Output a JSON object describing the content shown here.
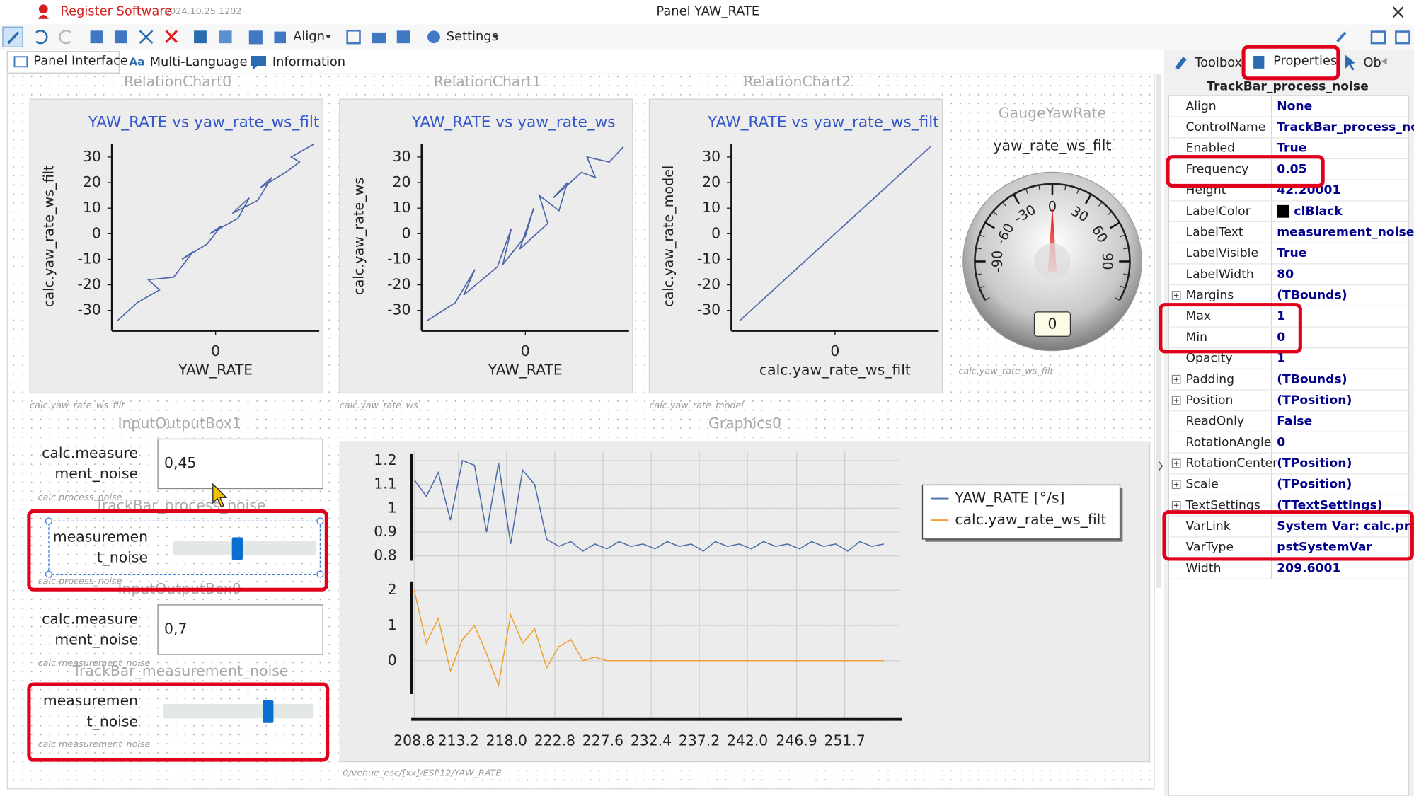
{
  "titlebar": {
    "app": "Register Software",
    "version": "2024.10.25.1202",
    "title": "Panel YAW_RATE"
  },
  "toolbar": {
    "align": "Align",
    "settings": "Settings"
  },
  "tabs": [
    "Panel Interface",
    "Multi-Language",
    "Information"
  ],
  "right_tabs": [
    "Toolbox",
    "Properties",
    "Ob"
  ],
  "properties": {
    "title": "TrackBar_process_noise",
    "rows": [
      {
        "name": "Align",
        "value": "None"
      },
      {
        "name": "ControlName",
        "value": "TrackBar_process_nois"
      },
      {
        "name": "Enabled",
        "value": "True"
      },
      {
        "name": "Frequency",
        "value": "0.05"
      },
      {
        "name": "Height",
        "value": "42.20001"
      },
      {
        "name": "LabelColor",
        "value": "clBlack",
        "swatch": "#000000"
      },
      {
        "name": "LabelText",
        "value": "measurement_noise"
      },
      {
        "name": "LabelVisible",
        "value": "True"
      },
      {
        "name": "LabelWidth",
        "value": "80"
      },
      {
        "name": "Margins",
        "value": "(TBounds)",
        "expand": true
      },
      {
        "name": "Max",
        "value": "1"
      },
      {
        "name": "Min",
        "value": "0"
      },
      {
        "name": "Opacity",
        "value": "1"
      },
      {
        "name": "Padding",
        "value": "(TBounds)",
        "expand": true
      },
      {
        "name": "Position",
        "value": "(TPosition)",
        "expand": true
      },
      {
        "name": "ReadOnly",
        "value": "False"
      },
      {
        "name": "RotationAngle",
        "value": "0"
      },
      {
        "name": "RotationCenter",
        "value": "(TPosition)",
        "expand": true
      },
      {
        "name": "Scale",
        "value": "(TPosition)",
        "expand": true
      },
      {
        "name": "TextSettings",
        "value": "(TTextSettings)",
        "expand": true
      },
      {
        "name": "VarLink",
        "value": "System Var: calc.proces"
      },
      {
        "name": "VarType",
        "value": "pstSystemVar"
      },
      {
        "name": "Width",
        "value": "209.6001"
      }
    ]
  },
  "relation_charts": [
    {
      "name": "RelationChart0",
      "title": "YAW_RATE vs yaw_rate_ws_filt",
      "xlabel": "YAW_RATE",
      "ylabel": "calc.yaw_rate_ws_filt",
      "var": "calc.yaw_rate_ws_filt",
      "xlim": [
        -37,
        37
      ],
      "ylim": [
        -38,
        35
      ],
      "xticks": [
        0
      ],
      "yticks": [
        30,
        20,
        10,
        0,
        -10,
        -20,
        -30
      ],
      "color": "#4a64a8",
      "x": [
        -35,
        -28,
        -20,
        -24,
        -15,
        -8,
        -12,
        -3,
        2,
        -2,
        8,
        12,
        6,
        15,
        20,
        16,
        25,
        30,
        27,
        35
      ],
      "y": [
        -34,
        -27,
        -22,
        -18,
        -17,
        -7,
        -10,
        -4,
        3,
        0,
        6,
        14,
        8,
        13,
        22,
        18,
        24,
        28,
        30,
        35
      ]
    },
    {
      "name": "RelationChart1",
      "title": "YAW_RATE vs yaw_rate_ws",
      "xlabel": "YAW_RATE",
      "ylabel": "calc.yaw_rate_ws",
      "var": "calc.yaw_rate_ws",
      "xlim": [
        -37,
        37
      ],
      "ylim": [
        -38,
        35
      ],
      "xticks": [
        0
      ],
      "yticks": [
        30,
        20,
        10,
        0,
        -10,
        -20,
        -30
      ],
      "color": "#4a64a8",
      "x": [
        -35,
        -25,
        -18,
        -22,
        -10,
        -5,
        -8,
        0,
        3,
        -2,
        8,
        5,
        12,
        15,
        10,
        20,
        25,
        22,
        30,
        35
      ],
      "y": [
        -34,
        -27,
        -14,
        -24,
        -13,
        2,
        -12,
        -1,
        10,
        -6,
        4,
        15,
        9,
        20,
        14,
        24,
        22,
        30,
        28,
        34
      ]
    },
    {
      "name": "RelationChart2",
      "title": "YAW_RATE vs yaw_rate_ws_filt",
      "xlabel": "calc.yaw_rate_ws_filt",
      "ylabel": "calc.yaw_rate_model",
      "var": "calc.yaw_rate_model",
      "xlim": [
        -37,
        37
      ],
      "ylim": [
        -38,
        35
      ],
      "xticks": [
        0
      ],
      "yticks": [
        30,
        20,
        10,
        0,
        -10,
        -20,
        -30
      ],
      "color": "#4a64a8",
      "x": [
        -34,
        34
      ],
      "y": [
        -34,
        34
      ]
    }
  ],
  "gauge": {
    "name": "GaugeYawRate",
    "label": "yaw_rate_ws_filt",
    "var": "calc.yaw_rate_ws_filt",
    "value": 0,
    "lim": [
      -120,
      120
    ],
    "ticks": [
      -90,
      -60,
      -30,
      0,
      30,
      60,
      90
    ]
  },
  "io_boxes": [
    {
      "name": "InputOutputBox1",
      "label_lines": [
        "calc.measure",
        "ment_noise"
      ],
      "value": "0,45",
      "var": "calc.process_noise"
    },
    {
      "name": "InputOutputBox0",
      "label_lines": [
        "calc.measure",
        "ment_noise"
      ],
      "value": "0,7",
      "var": "calc.measurement_noise"
    }
  ],
  "trackbars": [
    {
      "name": "TrackBar_process_noise",
      "label_lines": [
        "measuremen",
        "t_noise"
      ],
      "value": 0.45,
      "range": [
        0,
        1
      ],
      "var": "calc.process_noise"
    },
    {
      "name": "TrackBar_measurement_noise",
      "label_lines": [
        "measuremen",
        "t_noise"
      ],
      "value": 0.7,
      "range": [
        0,
        1
      ],
      "var": "calc.measurement_noise"
    }
  ],
  "graphics": {
    "name": "Graphics0",
    "var": "0/venue_esc/[xx]/ESP12/YAW_RATE",
    "grid": true,
    "xlim": [
      208.5,
      257.2
    ],
    "xticks": [
      208.8,
      213.2,
      {
        "value": 218,
        "label": "218.0"
      },
      222.8,
      227.6,
      232.4,
      237.2,
      {
        "value": 242,
        "label": "242.0"
      },
      246.9,
      251.7
    ],
    "x": [
      208.8,
      210,
      211.2,
      212.4,
      213.6,
      214.8,
      216,
      217.2,
      218.4,
      219.6,
      220.8,
      222,
      223.2,
      224.4,
      225.6,
      226.8,
      228,
      229.2,
      230.4,
      231.6,
      232.8,
      234,
      235.2,
      236.4,
      237.6,
      238.8,
      240,
      241.2,
      242.4,
      243.6,
      244.8,
      246,
      247.2,
      248.4,
      249.6,
      250.8,
      252,
      253.2,
      254.4,
      255.6
    ],
    "subplots": [
      {
        "ylim": [
          0.78,
          1.23
        ],
        "yticks": [
          1.2,
          1.1,
          1,
          0.9,
          0.8
        ],
        "series": [
          {
            "name": "YAW_RATE [°/s]",
            "color": "#4a6aa8",
            "values": [
              1.12,
              1.05,
              1.15,
              0.95,
              1.2,
              1.18,
              0.9,
              1.19,
              0.85,
              1.16,
              1.1,
              0.87,
              0.84,
              0.86,
              0.82,
              0.85,
              0.83,
              0.86,
              0.84,
              0.85,
              0.83,
              0.86,
              0.84,
              0.85,
              0.82,
              0.86,
              0.84,
              0.85,
              0.83,
              0.86,
              0.84,
              0.85,
              0.83,
              0.86,
              0.84,
              0.85,
              0.82,
              0.86,
              0.84,
              0.85
            ]
          }
        ]
      },
      {
        "ylim": [
          -0.95,
          2.25
        ],
        "yticks": [
          2,
          1,
          0
        ],
        "series": [
          {
            "name": "calc.yaw_rate_ws_filt",
            "color": "#f0a030",
            "values": [
              2,
              0.5,
              1.2,
              -0.3,
              0.6,
              1,
              0.2,
              -0.7,
              1.3,
              0.5,
              0.9,
              -0.2,
              0.4,
              0.6,
              0,
              0.1,
              0,
              0,
              0,
              0,
              0,
              0,
              0,
              0,
              0,
              0,
              0,
              0,
              0,
              0,
              0,
              0,
              0,
              0,
              0,
              0,
              0,
              0,
              0,
              0
            ]
          }
        ]
      }
    ]
  }
}
